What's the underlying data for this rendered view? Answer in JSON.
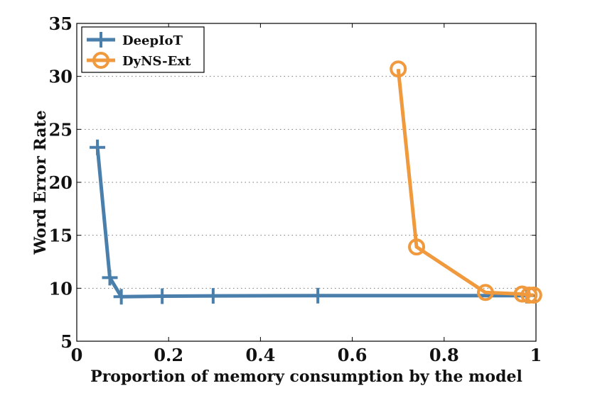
{
  "chart_data": {
    "type": "line",
    "title": "",
    "xlabel": "Proportion of memory consumption by the model",
    "ylabel": "Word Error Rate",
    "xlim": [
      0,
      1
    ],
    "ylim": [
      5,
      35
    ],
    "xticks": [
      0,
      0.2,
      0.4,
      0.6,
      0.8,
      1
    ],
    "xtick_labels": [
      "0",
      "0.2",
      "0.4",
      "0.6",
      "0.8",
      "1"
    ],
    "yticks": [
      5,
      10,
      15,
      20,
      25,
      30,
      35
    ],
    "ytick_labels": [
      "5",
      "10",
      "15",
      "20",
      "25",
      "30",
      "35"
    ],
    "grid": "dotted horizontal",
    "legend_position": "top-left",
    "series": [
      {
        "name": "DeepIoT",
        "color": "#4a7fac",
        "marker": "plus",
        "x": [
          0.045,
          0.072,
          0.097,
          0.186,
          0.297,
          0.525,
          0.98
        ],
        "y": [
          23.3,
          11.0,
          9.2,
          9.25,
          9.28,
          9.3,
          9.3
        ]
      },
      {
        "name": "DyNS-Ext",
        "color": "#f0993d",
        "marker": "circle",
        "x": [
          0.7,
          0.74,
          0.89,
          0.97,
          0.985,
          0.995
        ],
        "y": [
          30.7,
          13.9,
          9.6,
          9.45,
          9.35,
          9.35
        ]
      }
    ]
  }
}
